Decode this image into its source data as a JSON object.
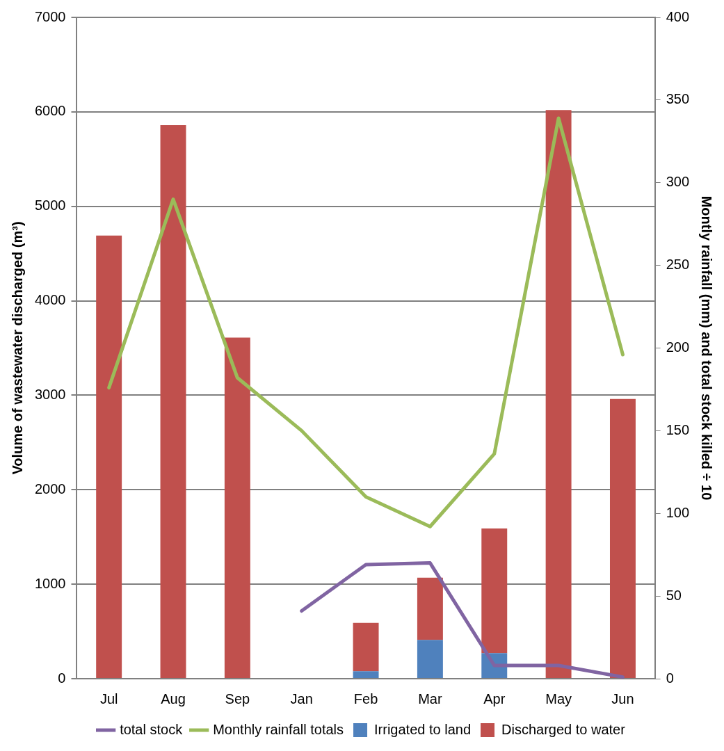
{
  "chart_data": {
    "type": "bar",
    "stacked": true,
    "categories": [
      "Jul",
      "Aug",
      "Sep",
      "Jan",
      "Feb",
      "Mar",
      "Apr",
      "May",
      "Jun"
    ],
    "series": [
      {
        "name": "Irrigated to land",
        "color": "#4f81bd",
        "values": [
          0,
          0,
          0,
          0,
          80,
          410,
          270,
          0,
          0
        ]
      },
      {
        "name": "Discharged to water",
        "color": "#c0504d",
        "values": [
          4690,
          5860,
          3610,
          0,
          510,
          660,
          1320,
          6020,
          2960
        ]
      },
      {
        "name": "total stock",
        "type": "line",
        "axis": "y2",
        "color": "#8064a2",
        "values": [
          null,
          null,
          null,
          41,
          69,
          70,
          8,
          8,
          1
        ]
      },
      {
        "name": "Monthly rainfall totals",
        "type": "line",
        "axis": "y2",
        "color": "#9bbb59",
        "values": [
          176,
          290,
          182,
          150,
          110,
          92,
          136,
          339,
          196
        ]
      }
    ],
    "ylabel": "Volume of wastewater discharged (m³)",
    "y2label": "Montly rainfall (mm) and total stock killed ÷ 10",
    "ylim": [
      0,
      7000
    ],
    "yticks": [
      0,
      1000,
      2000,
      3000,
      4000,
      5000,
      6000,
      7000
    ],
    "y2lim": [
      0,
      400
    ],
    "y2ticks": [
      0,
      50,
      100,
      150,
      200,
      250,
      300,
      350,
      400
    ],
    "grid": "y",
    "legend": "bottom",
    "marker": "none",
    "line_style": "solid"
  }
}
